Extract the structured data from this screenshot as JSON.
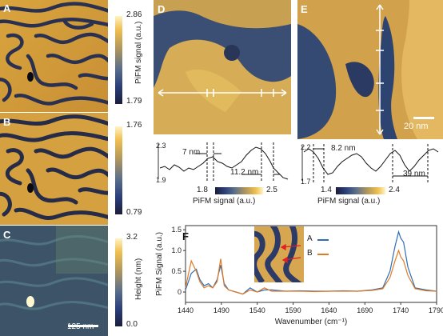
{
  "panels": {
    "A": {
      "letter": "A",
      "cbar_max": "2.86",
      "cbar_min": "1.79",
      "cbar_label": "PiFM signal (a.u.)"
    },
    "B": {
      "letter": "B",
      "cbar_max": "1.76",
      "cbar_min": "0.79"
    },
    "C": {
      "letter": "C",
      "cbar_max": "3.2",
      "cbar_min": "0.0",
      "cbar_label": "Height (nm)",
      "scalebar": "125 nm"
    },
    "D": {
      "letter": "D",
      "profile_top": "2.3",
      "profile_bottom": "1.9",
      "ann1": "7 nm",
      "ann2": "11.2 nm",
      "cbar_min": "1.8",
      "cbar_max": "2.5",
      "cbar_label": "PiFM signal (a.u.)"
    },
    "E": {
      "letter": "E",
      "scalebar": "20 nm",
      "profile_top": "2.2",
      "profile_bottom": "1.7",
      "ann1": "8.2 nm",
      "ann2": "39 nm",
      "cbar_min": "1.4",
      "cbar_max": "2.4",
      "cbar_label": "PiFM signal (a.u.)"
    },
    "F": {
      "letter": "F",
      "legend_A": "A",
      "legend_B": "B"
    }
  },
  "colors": {
    "A": "#2f6db5",
    "B": "#e07b25",
    "map_dark": "#1b2340",
    "map_light": "#f0c052"
  },
  "chart_data": {
    "type": "line",
    "xlabel": "Wavenumber (cm⁻¹)",
    "ylabel": "PiFM Signal (a.u.)",
    "xlim": [
      1440,
      1790
    ],
    "ylim": [
      -0.25,
      1.6
    ],
    "xticks": [
      "1440",
      "1490",
      "1540",
      "1590",
      "1640",
      "1690",
      "1740",
      "1790"
    ],
    "yticks": [
      "0",
      "0.5",
      "1.0",
      "1.5"
    ],
    "series": [
      {
        "name": "A",
        "x": [
          1440,
          1448,
          1455,
          1460,
          1466,
          1472,
          1478,
          1484,
          1489,
          1494,
          1500,
          1510,
          1520,
          1530,
          1540,
          1550,
          1560,
          1580,
          1600,
          1620,
          1640,
          1660,
          1680,
          1700,
          1715,
          1725,
          1732,
          1737,
          1740,
          1744,
          1750,
          1760,
          1775,
          1790
        ],
        "values": [
          0.05,
          0.45,
          0.55,
          0.3,
          0.15,
          0.2,
          0.1,
          0.3,
          0.65,
          0.2,
          0.05,
          0.0,
          -0.05,
          0.1,
          0.0,
          0.05,
          0.05,
          0.02,
          0.03,
          0.02,
          0.02,
          0.03,
          0.02,
          0.05,
          0.1,
          0.5,
          1.1,
          1.45,
          1.3,
          1.2,
          0.6,
          0.1,
          0.05,
          0.02
        ]
      },
      {
        "name": "B",
        "x": [
          1440,
          1448,
          1455,
          1460,
          1466,
          1472,
          1478,
          1484,
          1489,
          1494,
          1500,
          1510,
          1520,
          1530,
          1540,
          1550,
          1560,
          1580,
          1600,
          1620,
          1640,
          1660,
          1680,
          1700,
          1715,
          1725,
          1732,
          1737,
          1740,
          1744,
          1750,
          1760,
          1775,
          1790
        ],
        "values": [
          0.1,
          0.75,
          0.5,
          0.25,
          0.1,
          0.15,
          0.1,
          0.25,
          0.8,
          0.15,
          0.05,
          0.0,
          -0.05,
          0.05,
          0.0,
          0.1,
          0.02,
          0.02,
          0.02,
          0.01,
          0.02,
          0.02,
          0.02,
          0.04,
          0.08,
          0.35,
          0.75,
          1.0,
          0.85,
          0.75,
          0.4,
          0.08,
          0.03,
          0.02
        ]
      }
    ]
  }
}
